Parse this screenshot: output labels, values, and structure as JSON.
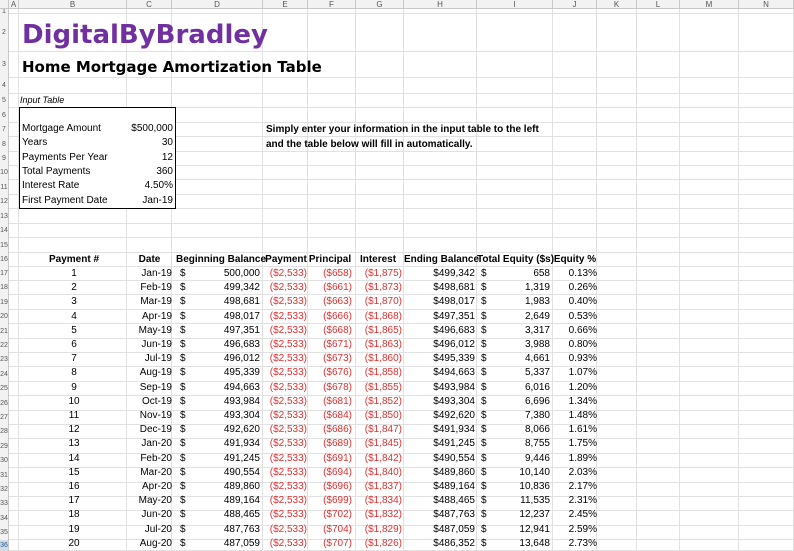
{
  "columns": [
    "A",
    "B",
    "C",
    "D",
    "E",
    "F",
    "G",
    "H",
    "I",
    "J",
    "K",
    "L",
    "M",
    "N"
  ],
  "row_numbers": [
    "1",
    "2",
    "3",
    "4",
    "5",
    "6",
    "7",
    "8",
    "9",
    "10",
    "11",
    "12",
    "13",
    "14",
    "15",
    "16",
    "17",
    "18",
    "19",
    "20",
    "21",
    "22",
    "23",
    "24",
    "25",
    "26",
    "27",
    "28",
    "29",
    "30",
    "31",
    "32",
    "33",
    "34",
    "35",
    "36",
    "37",
    "38"
  ],
  "brand": "DigitalByBradley",
  "title": "Home Mortgage Amortization Table",
  "input_table": {
    "label": "Input Table",
    "rows": [
      {
        "label": "Mortgage Amount",
        "value": "$500,000"
      },
      {
        "label": "Years",
        "value": "30"
      },
      {
        "label": "Payments Per Year",
        "value": "12"
      },
      {
        "label": "Total Payments",
        "value": "360"
      },
      {
        "label": "Interest Rate",
        "value": "4.50%"
      },
      {
        "label": "First Payment Date",
        "value": "Jan-19"
      }
    ]
  },
  "instructions": {
    "line1": "Simply enter your information in the input table to the left",
    "line2": "and the table below will fill in automatically."
  },
  "amortization": {
    "headers": [
      "Payment #",
      "Date",
      "Beginning Balance",
      "Payment",
      "Principal",
      "Interest",
      "Ending Balance",
      "Total Equity ($s)",
      "Equity %"
    ],
    "currency_symbol": "$",
    "rows": [
      {
        "n": "1",
        "date": "Jan-19",
        "begin": "500,000",
        "payment": "($2,533)",
        "principal": "($658)",
        "interest": "($1,875)",
        "end": "$499,342",
        "equity": "658",
        "pct": "0.13%"
      },
      {
        "n": "2",
        "date": "Feb-19",
        "begin": "499,342",
        "payment": "($2,533)",
        "principal": "($661)",
        "interest": "($1,873)",
        "end": "$498,681",
        "equity": "1,319",
        "pct": "0.26%"
      },
      {
        "n": "3",
        "date": "Mar-19",
        "begin": "498,681",
        "payment": "($2,533)",
        "principal": "($663)",
        "interest": "($1,870)",
        "end": "$498,017",
        "equity": "1,983",
        "pct": "0.40%"
      },
      {
        "n": "4",
        "date": "Apr-19",
        "begin": "498,017",
        "payment": "($2,533)",
        "principal": "($666)",
        "interest": "($1,868)",
        "end": "$497,351",
        "equity": "2,649",
        "pct": "0.53%"
      },
      {
        "n": "5",
        "date": "May-19",
        "begin": "497,351",
        "payment": "($2,533)",
        "principal": "($668)",
        "interest": "($1,865)",
        "end": "$496,683",
        "equity": "3,317",
        "pct": "0.66%"
      },
      {
        "n": "6",
        "date": "Jun-19",
        "begin": "496,683",
        "payment": "($2,533)",
        "principal": "($671)",
        "interest": "($1,863)",
        "end": "$496,012",
        "equity": "3,988",
        "pct": "0.80%"
      },
      {
        "n": "7",
        "date": "Jul-19",
        "begin": "496,012",
        "payment": "($2,533)",
        "principal": "($673)",
        "interest": "($1,860)",
        "end": "$495,339",
        "equity": "4,661",
        "pct": "0.93%"
      },
      {
        "n": "8",
        "date": "Aug-19",
        "begin": "495,339",
        "payment": "($2,533)",
        "principal": "($676)",
        "interest": "($1,858)",
        "end": "$494,663",
        "equity": "5,337",
        "pct": "1.07%"
      },
      {
        "n": "9",
        "date": "Sep-19",
        "begin": "494,663",
        "payment": "($2,533)",
        "principal": "($678)",
        "interest": "($1,855)",
        "end": "$493,984",
        "equity": "6,016",
        "pct": "1.20%"
      },
      {
        "n": "10",
        "date": "Oct-19",
        "begin": "493,984",
        "payment": "($2,533)",
        "principal": "($681)",
        "interest": "($1,852)",
        "end": "$493,304",
        "equity": "6,696",
        "pct": "1.34%"
      },
      {
        "n": "11",
        "date": "Nov-19",
        "begin": "493,304",
        "payment": "($2,533)",
        "principal": "($684)",
        "interest": "($1,850)",
        "end": "$492,620",
        "equity": "7,380",
        "pct": "1.48%"
      },
      {
        "n": "12",
        "date": "Dec-19",
        "begin": "492,620",
        "payment": "($2,533)",
        "principal": "($686)",
        "interest": "($1,847)",
        "end": "$491,934",
        "equity": "8,066",
        "pct": "1.61%"
      },
      {
        "n": "13",
        "date": "Jan-20",
        "begin": "491,934",
        "payment": "($2,533)",
        "principal": "($689)",
        "interest": "($1,845)",
        "end": "$491,245",
        "equity": "8,755",
        "pct": "1.75%"
      },
      {
        "n": "14",
        "date": "Feb-20",
        "begin": "491,245",
        "payment": "($2,533)",
        "principal": "($691)",
        "interest": "($1,842)",
        "end": "$490,554",
        "equity": "9,446",
        "pct": "1.89%"
      },
      {
        "n": "15",
        "date": "Mar-20",
        "begin": "490,554",
        "payment": "($2,533)",
        "principal": "($694)",
        "interest": "($1,840)",
        "end": "$489,860",
        "equity": "10,140",
        "pct": "2.03%"
      },
      {
        "n": "16",
        "date": "Apr-20",
        "begin": "489,860",
        "payment": "($2,533)",
        "principal": "($696)",
        "interest": "($1,837)",
        "end": "$489,164",
        "equity": "10,836",
        "pct": "2.17%"
      },
      {
        "n": "17",
        "date": "May-20",
        "begin": "489,164",
        "payment": "($2,533)",
        "principal": "($699)",
        "interest": "($1,834)",
        "end": "$488,465",
        "equity": "11,535",
        "pct": "2.31%"
      },
      {
        "n": "18",
        "date": "Jun-20",
        "begin": "488,465",
        "payment": "($2,533)",
        "principal": "($702)",
        "interest": "($1,832)",
        "end": "$487,763",
        "equity": "12,237",
        "pct": "2.45%"
      },
      {
        "n": "19",
        "date": "Jul-20",
        "begin": "487,763",
        "payment": "($2,533)",
        "principal": "($704)",
        "interest": "($1,829)",
        "end": "$487,059",
        "equity": "12,941",
        "pct": "2.59%"
      },
      {
        "n": "20",
        "date": "Aug-20",
        "begin": "487,059",
        "payment": "($2,533)",
        "principal": "($707)",
        "interest": "($1,826)",
        "end": "$486,352",
        "equity": "13,648",
        "pct": "2.73%"
      }
    ]
  },
  "colors": {
    "brand": "#7030a0",
    "negative": "#e03030",
    "header_bg": "#f2f2f2",
    "gridline": "#e1e1e1"
  }
}
